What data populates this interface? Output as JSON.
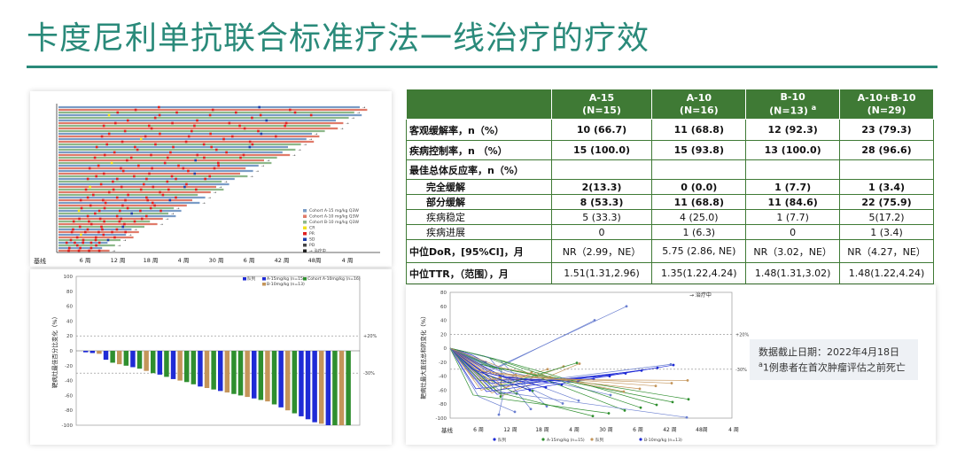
{
  "slide": {
    "title": "卡度尼利单抗联合标准疗法一线治疗的疗效",
    "accent_color": "#2a8a7a"
  },
  "table": {
    "header_color": "#3f7a35",
    "columns": [
      {
        "line1": "A-15",
        "line2": "(N=15)"
      },
      {
        "line1": "A-10",
        "line2": "(N=16)"
      },
      {
        "line1": "B-10",
        "line2": "(N=13)",
        "sup": "a"
      },
      {
        "line1": "A-10+B-10",
        "line2": "(N=29)"
      }
    ],
    "rows": [
      {
        "label": "客观缓解率，n（%）",
        "values": [
          "10 (66.7)",
          "11 (68.8)",
          "12 (92.3)",
          "23 (79.3)"
        ]
      },
      {
        "label": "疾病控制率，n （%）",
        "values": [
          "15 (100.0)",
          "15 (93.8)",
          "13 (100.0)",
          "28 (96.6)"
        ]
      },
      {
        "label": "最佳总体反应率，n（%）",
        "values": [
          "",
          "",
          "",
          ""
        ]
      },
      {
        "label": "完全缓解",
        "values": [
          "2(13.3)",
          "0 (0.0)",
          "1 (7.7)",
          "1 (3.4)"
        ]
      },
      {
        "label": "部分缓解",
        "values": [
          "8 (53.3)",
          "11 (68.8)",
          "11 (84.6)",
          "22 (75.9)"
        ]
      },
      {
        "label": "疾病稳定",
        "values": [
          "5 (33.3)",
          "4 (25.0)",
          "1 (7.7)",
          "5(17.2)"
        ]
      },
      {
        "label": "疾病进展",
        "values": [
          "0",
          "1 (6.3)",
          "0",
          "1 (3.4)"
        ]
      },
      {
        "label": "中位DoR，[95%CI]，月",
        "values": [
          "NR（2.99，NE）",
          "5.75 (2.86, NE)",
          "NR（3.02，NE）",
          "NR（4.27，NE）"
        ]
      },
      {
        "label": "中位TTR，（范围），月",
        "values": [
          "1.51(1.31,2.96)",
          "1.35(1.22,4.24)",
          "1.48(1.31,3.02)",
          "1.48(1.22,4.24)"
        ]
      }
    ]
  },
  "note": {
    "cutoff": "数据截止日期：2022年4月18日",
    "footnote_mark": "a",
    "footnote": "1例患者在首次肿瘤评估之前死亡"
  },
  "swimmer": {
    "baseline_label": "基线",
    "x_ticks": [
      "6 周",
      "12 周",
      "18 周",
      "4 周",
      "30 周",
      "6 周",
      "42 周",
      "48周",
      "4 周"
    ],
    "legend": [
      {
        "label": "Cohort A-15 mg/kg Q3W",
        "color": "#7a9cc6"
      },
      {
        "label": "Cohort A-10 mg/kg Q3W",
        "color": "#e07b6a"
      },
      {
        "label": "Cohort B-10 mg/kg Q3W",
        "color": "#8db88a"
      },
      {
        "label": "CR",
        "color": "#f2e21c"
      },
      {
        "label": "PR",
        "color": "#e02020"
      },
      {
        "label": "SD",
        "color": "#1f3ea8"
      },
      {
        "label": "PD",
        "color": "#444444"
      },
      {
        "label": "→ 治疗中",
        "color": "#222222"
      }
    ]
  },
  "waterfall": {
    "y_label": "靶病灶最佳百分比变化（%）",
    "y_ticks": [
      "100",
      "80",
      "60",
      "40",
      "20",
      "0",
      "-20",
      "-40",
      "-60",
      "-80",
      "-100"
    ],
    "ref_labels": [
      "+20%",
      "-30%"
    ],
    "legend": [
      {
        "label": "队列",
        "color": "#1f2bd6"
      },
      {
        "label": "A-15mg/kg (n=15)",
        "color": "#1f2bd6"
      },
      {
        "label": "Cohort A-10mg/kg (n=16)",
        "color": "#2f8f2f"
      },
      {
        "label": "B-10mg/kg (n=13)",
        "color": "#c4955a"
      }
    ],
    "values": [
      -2,
      -3,
      -4,
      -12,
      -16,
      -18,
      -20,
      -22,
      -24,
      -27,
      -30,
      -32,
      -35,
      -38,
      -40,
      -42,
      -45,
      -48,
      -50,
      -52,
      -54,
      -56,
      -58,
      -60,
      -62,
      -64,
      -66,
      -68,
      -72,
      -76,
      -80,
      -84,
      -88,
      -92,
      -96,
      -98,
      -100,
      -100,
      -100,
      -100
    ],
    "colors": [
      "b",
      "b",
      "t",
      "b",
      "g",
      "t",
      "g",
      "b",
      "g",
      "t",
      "g",
      "b",
      "g",
      "b",
      "t",
      "g",
      "g",
      "b",
      "t",
      "g",
      "b",
      "t",
      "g",
      "g",
      "t",
      "b",
      "g",
      "t",
      "g",
      "b",
      "t",
      "g",
      "b",
      "b",
      "b",
      "t",
      "b",
      "g",
      "t",
      "g"
    ]
  },
  "spider": {
    "y_label": "靶病灶最大直径总和的变化（%）",
    "baseline_label": "基线",
    "x_ticks": [
      "6 周",
      "12 周",
      "18 周",
      "4 周",
      "30 周",
      "6 周",
      "42 周",
      "48周",
      "4 周"
    ],
    "y_ticks": [
      "80",
      "60",
      "40",
      "20",
      "0",
      "-20",
      "-40",
      "-60",
      "-80",
      "-100"
    ],
    "ref_labels": [
      "+20%",
      "-30%"
    ],
    "legend_top": "→ 治疗中",
    "legend": [
      {
        "label": "队列",
        "color": "#1f2bd6"
      },
      {
        "label": "A-15mg/kg (n=15)",
        "color": "#2f8f2f"
      },
      {
        "label": "队列",
        "color": "#c4955a"
      },
      {
        "label": "B-10mg/kg (n=13)",
        "color": "#1f2bd6"
      }
    ]
  }
}
